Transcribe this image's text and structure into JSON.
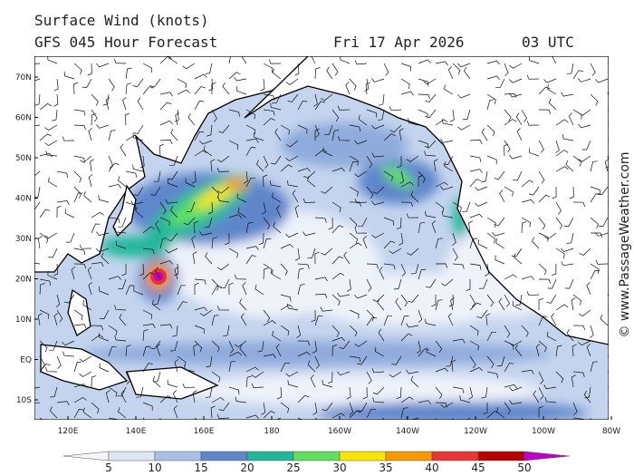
{
  "header": {
    "title": "Surface Wind (knots)",
    "forecast": "GFS 045 Hour Forecast",
    "date": "Fri 17 Apr 2026",
    "time": "03 UTC"
  },
  "map": {
    "lat_labels": [
      "70N",
      "60N",
      "50N",
      "40N",
      "30N",
      "20N",
      "10N",
      "EQ",
      "10S"
    ],
    "lon_labels": [
      "120E",
      "140E",
      "160E",
      "180",
      "160W",
      "140W",
      "120W",
      "100W",
      "80W"
    ]
  },
  "colorbar": {
    "labels": [
      5,
      10,
      15,
      20,
      25,
      30,
      35,
      40,
      45,
      50
    ],
    "colors": [
      "#f4f6fb",
      "#dde6f4",
      "#a9c0e4",
      "#5f86cb",
      "#22b79b",
      "#60e060",
      "#f6e600",
      "#f59a00",
      "#e83434",
      "#b40000",
      "#c000c8"
    ]
  },
  "credit": "© www.PassageWeather.com"
}
